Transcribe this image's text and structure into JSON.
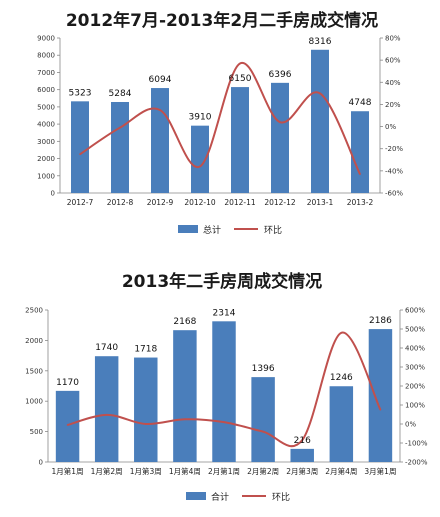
{
  "chart_data": [
    {
      "type": "bar",
      "title": "2012年7月-2013年2月二手房成交情况",
      "categories": [
        "2012-7",
        "2012-8",
        "2012-9",
        "2012-10",
        "2012-11",
        "2012-12",
        "2013-1",
        "2013-2"
      ],
      "series": [
        {
          "name": "总计",
          "type": "bar",
          "axis": "left",
          "values": [
            5323,
            5284,
            6094,
            3910,
            6150,
            6396,
            8316,
            4748
          ]
        },
        {
          "name": "环比",
          "type": "line",
          "axis": "right",
          "values": [
            -0.25,
            -0.01,
            0.15,
            -0.36,
            0.57,
            0.04,
            0.3,
            -0.43
          ]
        }
      ],
      "ylim": [
        0,
        9000
      ],
      "yticks": [
        "0",
        "1000",
        "2000",
        "3000",
        "4000",
        "5000",
        "6000",
        "7000",
        "8000",
        "9000"
      ],
      "y2lim": [
        -0.6,
        0.8
      ],
      "y2ticks": [
        "-60%",
        "-40%",
        "-20%",
        "0%",
        "20%",
        "40%",
        "60%",
        "80%"
      ],
      "data_labels": [
        "5323",
        "5284",
        "6094",
        "3910",
        "6150",
        "6396",
        "8316",
        "4748"
      ],
      "legend": "bottom",
      "grid": false,
      "colors": {
        "bar": "#4a7ebb",
        "line": "#c0504d"
      }
    },
    {
      "type": "bar",
      "title": "2013年二手房周成交情况",
      "categories": [
        "1月第1周",
        "1月第2周",
        "1月第3周",
        "1月第4周",
        "2月第1周",
        "2月第2周",
        "2月第3周",
        "2月第4周",
        "3月第1周"
      ],
      "series": [
        {
          "name": "合计",
          "type": "bar",
          "axis": "left",
          "values": [
            1170,
            1740,
            1718,
            2168,
            2314,
            1396,
            216,
            1246,
            2186
          ]
        },
        {
          "name": "环比",
          "type": "line",
          "axis": "right",
          "values": [
            -0.05,
            0.48,
            0.0,
            0.25,
            0.1,
            -0.4,
            -0.85,
            4.8,
            0.75
          ]
        }
      ],
      "ylim": [
        0,
        2500
      ],
      "yticks": [
        "0",
        "500",
        "1000",
        "1500",
        "2000",
        "2500"
      ],
      "y2lim": [
        -2.0,
        6.0
      ],
      "y2ticks": [
        "-200%",
        "-100%",
        "0%",
        "100%",
        "200%",
        "300%",
        "400%",
        "500%",
        "600%"
      ],
      "data_labels": [
        "1170",
        "1740",
        "1718",
        "2168",
        "2314",
        "1396",
        "216",
        "1246",
        "2186"
      ],
      "legend": "bottom",
      "grid": false,
      "colors": {
        "bar": "#4a7ebb",
        "line": "#c0504d"
      }
    }
  ]
}
